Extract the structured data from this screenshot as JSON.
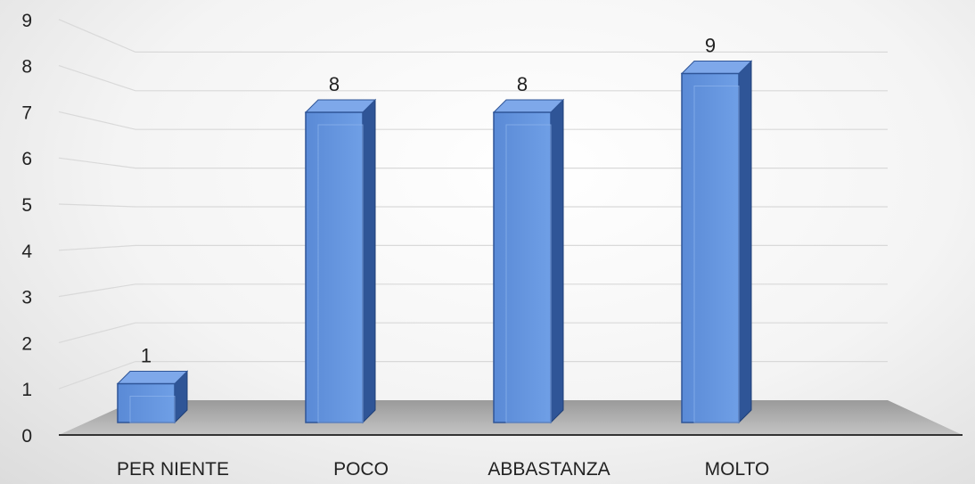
{
  "chart_data": {
    "type": "bar",
    "style": "3d-column",
    "categories": [
      "PER NIENTE",
      "POCO",
      "ABBASTANZA",
      "MOLTO"
    ],
    "values": [
      1,
      8,
      8,
      9
    ],
    "data_labels": [
      "1",
      "8",
      "8",
      "9"
    ],
    "y_ticks": [
      "0",
      "1",
      "2",
      "3",
      "4",
      "5",
      "6",
      "7",
      "8",
      "9"
    ],
    "ylim": [
      0,
      9
    ],
    "grid": true,
    "legend": "none",
    "colors": {
      "bar_front": "#5b8fd9",
      "bar_side": "#2f5597",
      "bar_top": "#7ea8ea",
      "floor": "#a6a6a6",
      "grid": "#d9d9d9"
    }
  }
}
